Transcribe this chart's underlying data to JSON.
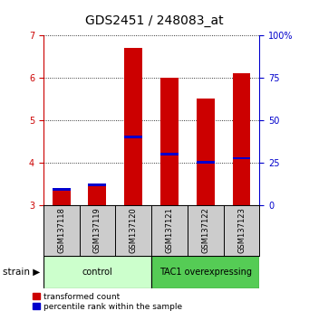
{
  "title": "GDS2451 / 248083_at",
  "samples": [
    "GSM137118",
    "GSM137119",
    "GSM137120",
    "GSM137121",
    "GSM137122",
    "GSM137123"
  ],
  "bar_bottom": 3.0,
  "red_tops": [
    3.35,
    3.45,
    6.7,
    6.0,
    5.5,
    6.1
  ],
  "blue_values": [
    3.37,
    3.47,
    4.6,
    4.2,
    4.0,
    4.1
  ],
  "ylim_left": [
    3,
    7
  ],
  "yticks_left": [
    3,
    4,
    5,
    6,
    7
  ],
  "yticks_right": [
    0,
    25,
    50,
    75,
    100
  ],
  "ylabel_left_color": "#cc0000",
  "ylabel_right_color": "#0000cc",
  "groups": [
    {
      "label": "control",
      "indices": [
        0,
        1,
        2
      ],
      "color": "#ccffcc"
    },
    {
      "label": "TAC1 overexpressing",
      "indices": [
        3,
        4,
        5
      ],
      "color": "#55cc55"
    }
  ],
  "bar_color_red": "#cc0000",
  "bar_color_blue": "#0000cc",
  "bar_width": 0.5,
  "grid_color": "#000000",
  "title_fontsize": 10,
  "tick_fontsize": 7,
  "sample_label_fontsize": 6,
  "group_fontsize": 7,
  "legend_fontsize": 6.5,
  "label_area_bg": "#cccccc"
}
